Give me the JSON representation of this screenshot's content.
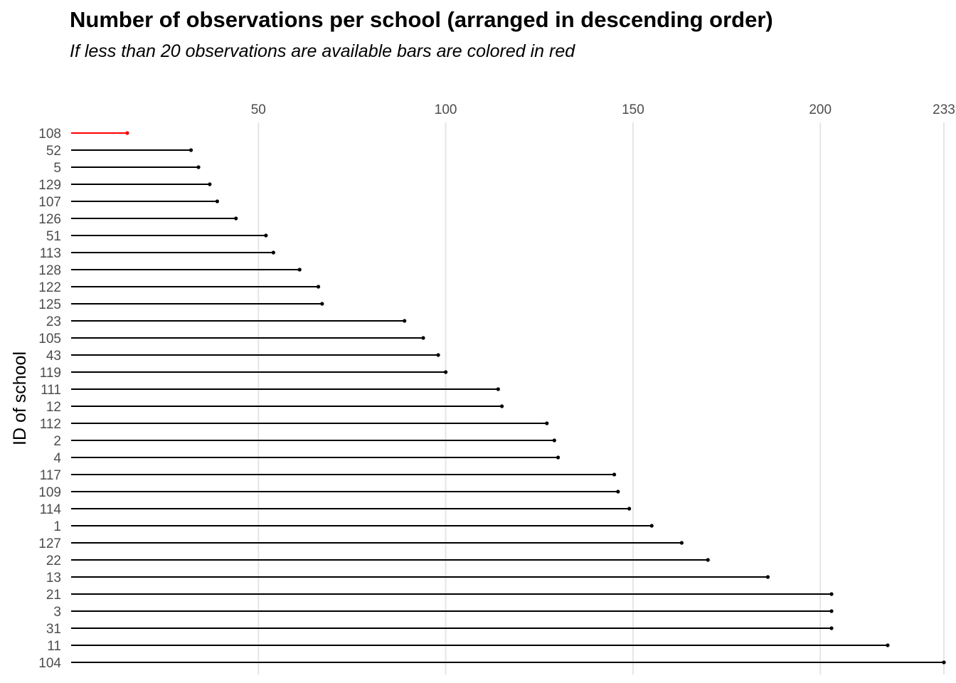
{
  "chart_data": {
    "type": "bar",
    "orientation": "horizontal",
    "title": "Number of observations per school (arranged in descending order)",
    "subtitle": "If less than 20 observations are available bars are colored in red",
    "xlabel": "",
    "ylabel": "ID of school",
    "x_ticks": [
      "50",
      "100",
      "150",
      "200",
      "233"
    ],
    "x_tick_values": [
      50,
      100,
      150,
      200,
      233
    ],
    "xlim": [
      0,
      233
    ],
    "grid": true,
    "x_axis_position": "top",
    "threshold": 20,
    "colors": {
      "below_threshold": "#ff0000",
      "default": "#000000",
      "grid": "#e5e5e5"
    },
    "categories": [
      "108",
      "52",
      "5",
      "129",
      "107",
      "126",
      "51",
      "113",
      "128",
      "122",
      "125",
      "23",
      "105",
      "43",
      "119",
      "111",
      "12",
      "112",
      "2",
      "4",
      "117",
      "109",
      "114",
      "1",
      "127",
      "22",
      "13",
      "21",
      "3",
      "31",
      "11",
      "104"
    ],
    "values": [
      15,
      32,
      34,
      37,
      39,
      44,
      52,
      54,
      61,
      66,
      67,
      89,
      94,
      98,
      100,
      114,
      115,
      127,
      129,
      130,
      145,
      146,
      149,
      155,
      163,
      170,
      186,
      203,
      203,
      203,
      218,
      233
    ]
  }
}
